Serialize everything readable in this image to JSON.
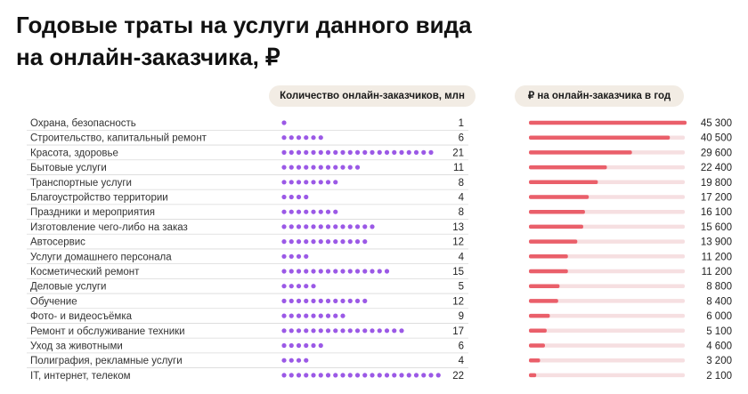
{
  "title": {
    "line1": "Годовые траты на услуги данного вида",
    "line2": "на онлайн-заказчика, ₽"
  },
  "headers": {
    "count": "Количество онлайн-заказчиков, млн",
    "spend": "₽ на онлайн-заказчика в год"
  },
  "colors": {
    "dot": "#9b59e6",
    "bar": "#ea5f6a",
    "track": "#f6dfe1",
    "pill": "#f2ece4",
    "separator": "#d9d9d9"
  },
  "chart_data": {
    "type": "table",
    "categories": [
      "Охрана, безопасность",
      "Строительство, капитальный ремонт",
      "Красота, здоровье",
      "Бытовые услуги",
      "Транспортные услуги",
      "Благоустройство территории",
      "Праздники и мероприятия",
      "Изготовление чего-либо на заказ",
      "Автосервис",
      "Услуги домашнего персонала",
      "Косметический ремонт",
      "Деловые услуги",
      "Обучение",
      "Фото- и видеосъёмка",
      "Ремонт и обслуживание техники",
      "Уход за животными",
      "Полиграфия, рекламные услуги",
      "IT, интернет, телеком"
    ],
    "series": [
      {
        "name": "Количество онлайн-заказчиков, млн",
        "values": [
          1,
          6,
          21,
          11,
          8,
          4,
          8,
          13,
          12,
          4,
          15,
          5,
          12,
          9,
          17,
          6,
          4,
          22
        ],
        "labels": [
          "1",
          "6",
          "21",
          "11",
          "8",
          "4",
          "8",
          "13",
          "12",
          "4",
          "15",
          "5",
          "12",
          "9",
          "17",
          "6",
          "4",
          "22"
        ]
      },
      {
        "name": "₽ на онлайн-заказчика в год",
        "values": [
          45300,
          40500,
          29600,
          22400,
          19800,
          17200,
          16100,
          15600,
          13900,
          11200,
          11200,
          8800,
          8400,
          6000,
          5100,
          4600,
          3200,
          2100
        ],
        "labels": [
          "45 300",
          "40 500",
          "29 600",
          "22 400",
          "19 800",
          "17 200",
          "16 100",
          "15 600",
          "13 900",
          "11 200",
          "11 200",
          "8 800",
          "8 400",
          "6 000",
          "5 100",
          "4 600",
          "3 200",
          "2 100"
        ]
      }
    ],
    "spend_max": 45300
  }
}
